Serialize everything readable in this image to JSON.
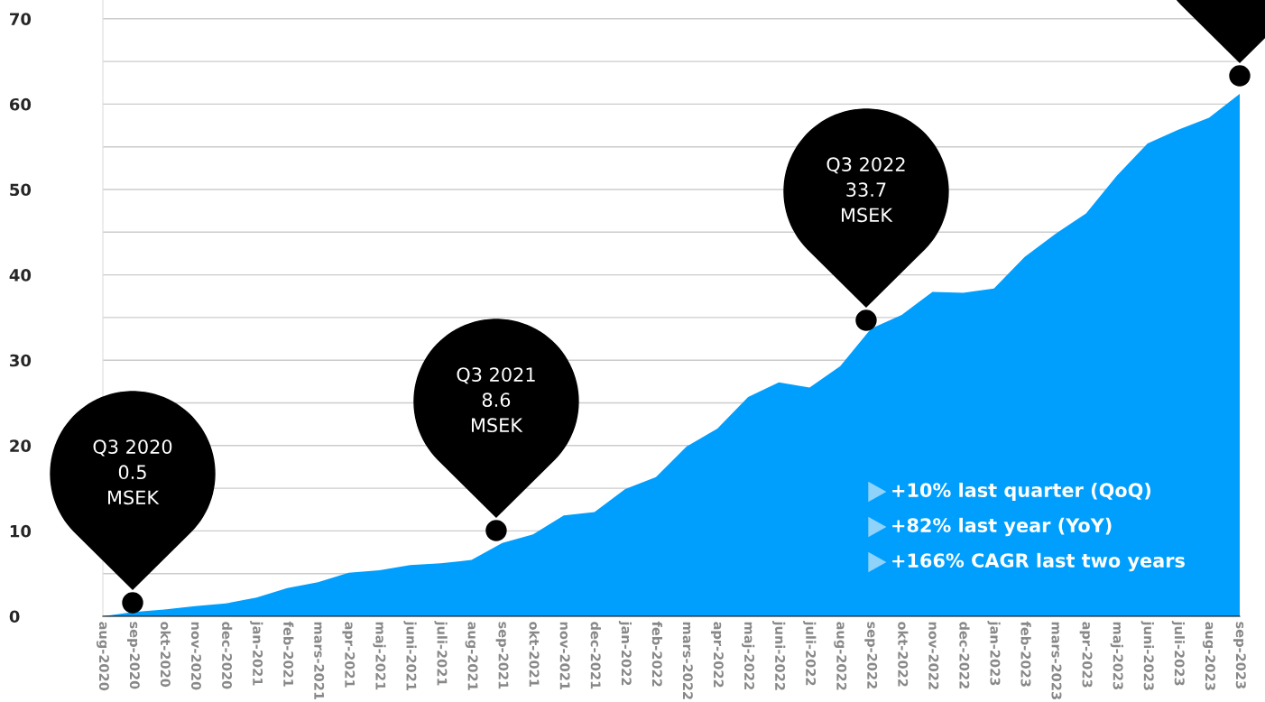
{
  "chart_data": {
    "type": "area",
    "categories": [
      "aug-2020",
      "sep-2020",
      "okt-2020",
      "nov-2020",
      "dec-2020",
      "jan-2021",
      "feb-2021",
      "mars-2021",
      "apr-2021",
      "maj-2021",
      "juni-2021",
      "juli-2021",
      "aug-2021",
      "sep-2021",
      "okt-2021",
      "nov-2021",
      "dec-2021",
      "jan-2022",
      "feb-2022",
      "mars-2022",
      "apr-2022",
      "maj-2022",
      "juni-2022",
      "juli-2022",
      "aug-2022",
      "sep-2022",
      "okt-2022",
      "nov-2022",
      "dec-2022",
      "jan-2023",
      "feb-2023",
      "mars-2023",
      "apr-2023",
      "maj-2023",
      "juni-2023",
      "juli-2023",
      "aug-2023",
      "sep-2023"
    ],
    "series": [
      {
        "color": "#009ffd",
        "values": [
          0,
          0.5,
          0.8,
          1.2,
          1.5,
          2.2,
          3.3,
          4.0,
          5.1,
          5.4,
          6.0,
          6.2,
          6.6,
          8.6,
          9.6,
          11.8,
          12.2,
          14.9,
          16.3,
          19.9,
          22.0,
          25.7,
          27.4,
          26.8,
          29.3,
          33.7,
          35.3,
          38.0,
          37.9,
          38.4,
          42.1,
          44.8,
          47.2,
          51.6,
          55.4,
          57.0,
          58.4,
          61.2
        ]
      }
    ],
    "ylim": [
      0,
      72.2
    ],
    "yticks": [
      0,
      {
        "value": 5,
        "label": null
      },
      10,
      {
        "value": 15,
        "label": null
      },
      20,
      {
        "value": 25,
        "label": null
      },
      30,
      {
        "value": 35,
        "label": null
      },
      40,
      {
        "value": 45,
        "label": null
      },
      50,
      {
        "value": 55,
        "label": null
      },
      60,
      {
        "value": 65,
        "label": null
      },
      70
    ],
    "grid": "y",
    "legend": false,
    "annotations": [
      "Q3 2020\n0.5\nMSEK",
      "Q3 2021\n8.6\nMSEK",
      "Q3 2022\n33.7\nMSEK",
      "+10% last quarter (QoQ)",
      "+82% last year (YoY)",
      "+166% CAGR last two years"
    ]
  }
}
